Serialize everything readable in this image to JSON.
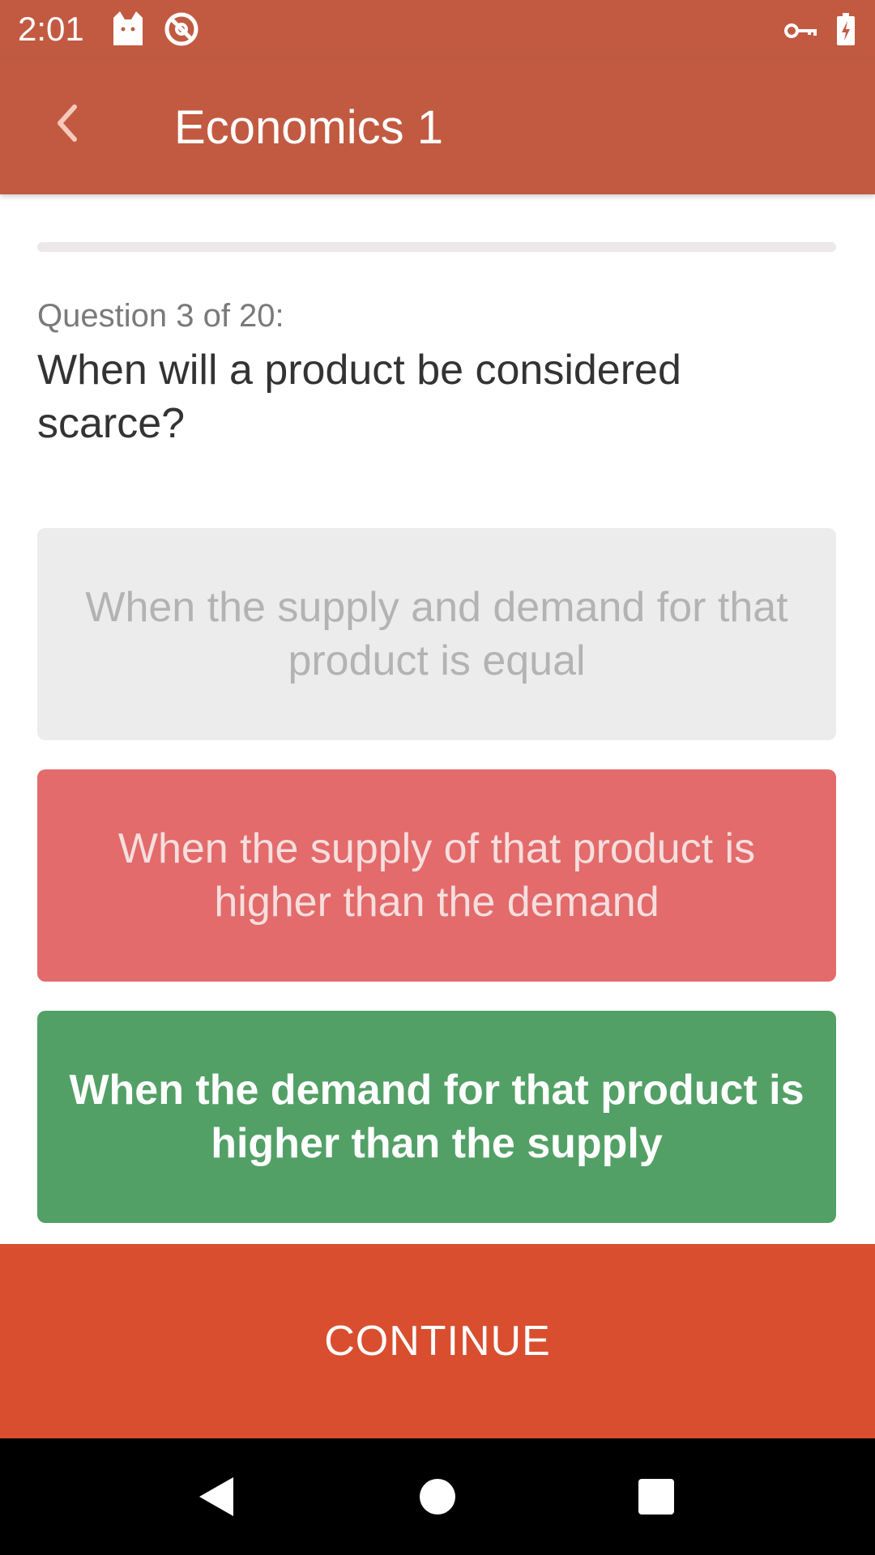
{
  "status_bar": {
    "time": "2:01",
    "icons": [
      "cat-icon",
      "block-icon",
      "key-icon",
      "battery-charging-icon"
    ]
  },
  "app_bar": {
    "title": "Economics 1",
    "back_icon": "chevron-left-icon"
  },
  "quiz": {
    "progress_fraction": 0.0,
    "counter": "Question 3 of 20:",
    "question": "When will a product be considered scarce?",
    "answers": [
      {
        "text": "When the supply and demand for that product is equal",
        "state": "neutral"
      },
      {
        "text": "When the supply of that product is higher than the demand",
        "state": "wrong"
      },
      {
        "text": "When the demand for that product is higher than the supply",
        "state": "correct"
      }
    ]
  },
  "footer": {
    "continue_label": "CONTINUE"
  },
  "nav_bar": {
    "icons": [
      "nav-back-icon",
      "nav-home-icon",
      "nav-recents-icon"
    ]
  },
  "colors": {
    "header": "#c25a42",
    "continue": "#d94e2f",
    "neutral": "#ececec",
    "wrong": "#e36b6b",
    "correct": "#52a066"
  }
}
